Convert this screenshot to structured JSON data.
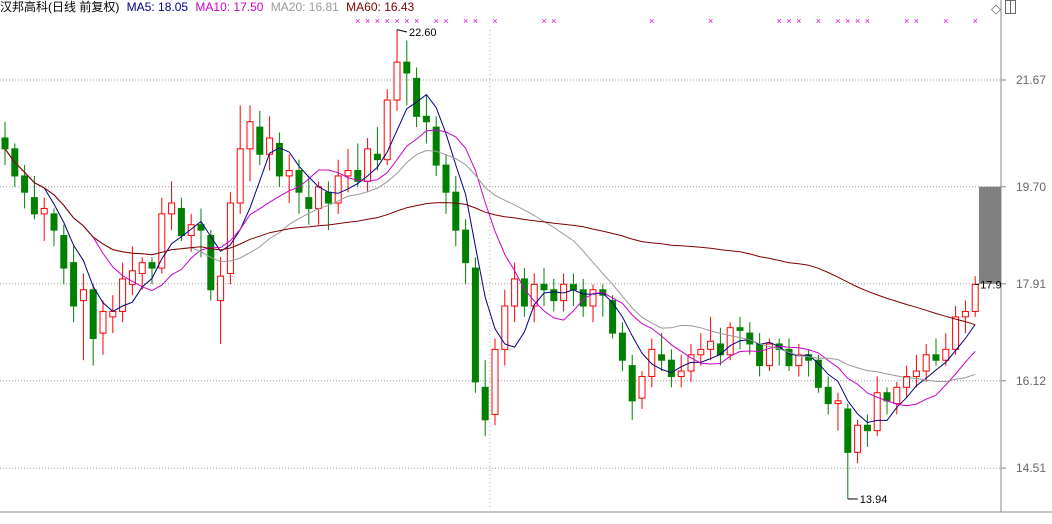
{
  "legend": {
    "title": "汉邦高科(日线 前复权)",
    "ma5": "MA5: 18.05",
    "ma10": "MA10: 17.50",
    "ma20": "MA20: 16.81",
    "ma60": "MA60: 16.43"
  },
  "colors": {
    "up": "#ff0000",
    "down": "#008000",
    "ma5": "#000080",
    "ma10": "#cc00cc",
    "ma20": "#999999",
    "ma60": "#800000",
    "signal": "#dd00dd",
    "grid": "#999999"
  },
  "icons": [
    "diamond-icon",
    "panel-toggle-icon"
  ],
  "chart_data": {
    "type": "candlestick",
    "y_ticks": [
      21.67,
      19.7,
      17.91,
      16.12,
      14.51
    ],
    "y_tick_labels": [
      "21.67",
      "19.70",
      "17.91",
      "16.12",
      "14.51"
    ],
    "annotations": [
      {
        "label": "22.60",
        "value": 22.6,
        "candle": 40
      },
      {
        "label": "13.94",
        "value": 13.94,
        "candle": 86
      },
      {
        "label": "17.9",
        "value": 17.9,
        "candle": 99
      }
    ],
    "ma_periods": [
      5,
      10,
      20,
      60
    ],
    "signal_candles": [
      36,
      37,
      38,
      39,
      40,
      41,
      42,
      44,
      45,
      47,
      48,
      50,
      55,
      56,
      66,
      72,
      79,
      80,
      81,
      83,
      85,
      86,
      87,
      88,
      92,
      93,
      96,
      99
    ],
    "ohlc": [
      [
        20.6,
        20.9,
        20.1,
        20.4
      ],
      [
        20.4,
        20.5,
        19.7,
        19.9
      ],
      [
        19.9,
        20.1,
        19.3,
        19.6
      ],
      [
        19.5,
        19.9,
        19.1,
        19.2
      ],
      [
        19.2,
        19.5,
        18.7,
        19.3
      ],
      [
        19.2,
        19.3,
        18.6,
        18.9
      ],
      [
        18.8,
        19.0,
        17.9,
        18.2
      ],
      [
        18.3,
        18.6,
        17.2,
        17.5
      ],
      [
        17.6,
        18.1,
        16.5,
        17.8
      ],
      [
        17.8,
        17.9,
        16.4,
        16.9
      ],
      [
        17.0,
        17.6,
        16.6,
        17.4
      ],
      [
        17.3,
        17.7,
        17.0,
        17.4
      ],
      [
        17.4,
        18.3,
        17.2,
        18.0
      ],
      [
        17.9,
        18.6,
        17.7,
        18.15
      ],
      [
        18.1,
        18.4,
        17.8,
        18.3
      ],
      [
        18.3,
        18.4,
        17.9,
        18.2
      ],
      [
        18.2,
        19.5,
        18.1,
        19.2
      ],
      [
        19.2,
        19.8,
        18.9,
        19.4
      ],
      [
        19.3,
        19.5,
        18.7,
        18.8
      ],
      [
        18.8,
        19.2,
        18.5,
        19.0
      ],
      [
        19.0,
        19.3,
        18.4,
        18.9
      ],
      [
        18.8,
        18.9,
        17.6,
        17.8
      ],
      [
        17.6,
        18.4,
        16.8,
        18.05
      ],
      [
        18.1,
        19.6,
        17.9,
        19.4
      ],
      [
        19.4,
        21.2,
        19.2,
        20.4
      ],
      [
        20.4,
        21.2,
        19.8,
        20.9
      ],
      [
        20.8,
        21.1,
        20.1,
        20.3
      ],
      [
        20.3,
        21.0,
        20.0,
        20.6
      ],
      [
        20.5,
        20.7,
        19.7,
        19.9
      ],
      [
        19.9,
        20.3,
        19.4,
        20.0
      ],
      [
        20.0,
        20.2,
        19.2,
        19.6
      ],
      [
        19.5,
        19.9,
        19.0,
        19.3
      ],
      [
        19.3,
        19.8,
        19.0,
        19.7
      ],
      [
        19.6,
        19.8,
        18.9,
        19.4
      ],
      [
        19.4,
        20.2,
        19.2,
        19.9
      ],
      [
        19.9,
        20.4,
        19.6,
        20.0
      ],
      [
        20.0,
        20.5,
        19.7,
        19.8
      ],
      [
        19.8,
        20.6,
        19.6,
        20.4
      ],
      [
        20.3,
        20.8,
        20.0,
        20.2
      ],
      [
        20.2,
        21.5,
        20.1,
        21.3
      ],
      [
        21.3,
        22.6,
        21.1,
        22.0
      ],
      [
        22.0,
        22.4,
        21.2,
        21.8
      ],
      [
        21.7,
        21.9,
        20.8,
        21.0
      ],
      [
        21.0,
        21.4,
        20.5,
        20.9
      ],
      [
        20.8,
        21.0,
        19.9,
        20.1
      ],
      [
        20.1,
        20.3,
        19.2,
        19.6
      ],
      [
        19.6,
        19.9,
        18.6,
        18.9
      ],
      [
        18.9,
        19.1,
        17.9,
        18.3
      ],
      [
        18.2,
        18.4,
        15.9,
        16.1
      ],
      [
        16.0,
        16.5,
        15.1,
        15.4
      ],
      [
        15.5,
        16.9,
        15.3,
        16.7
      ],
      [
        16.7,
        17.8,
        16.4,
        17.5
      ],
      [
        17.5,
        18.3,
        17.2,
        18.0
      ],
      [
        18.0,
        18.2,
        17.3,
        17.5
      ],
      [
        17.5,
        18.1,
        17.2,
        17.9
      ],
      [
        17.9,
        18.2,
        17.5,
        17.8
      ],
      [
        17.8,
        18.0,
        17.4,
        17.6
      ],
      [
        17.6,
        18.1,
        17.4,
        17.9
      ],
      [
        17.9,
        18.1,
        17.5,
        17.8
      ],
      [
        17.8,
        18.0,
        17.3,
        17.5
      ],
      [
        17.5,
        17.9,
        17.2,
        17.8
      ],
      [
        17.8,
        17.9,
        17.3,
        17.7
      ],
      [
        17.6,
        17.7,
        16.9,
        17.0
      ],
      [
        17.0,
        17.2,
        16.3,
        16.5
      ],
      [
        16.4,
        16.6,
        15.4,
        15.75
      ],
      [
        15.8,
        16.3,
        15.6,
        16.2
      ],
      [
        16.2,
        16.9,
        16.0,
        16.7
      ],
      [
        16.6,
        17.0,
        16.3,
        16.5
      ],
      [
        16.5,
        16.7,
        16.0,
        16.2
      ],
      [
        16.2,
        16.6,
        16.0,
        16.3
      ],
      [
        16.3,
        16.8,
        16.1,
        16.6
      ],
      [
        16.6,
        17.0,
        16.4,
        16.7
      ],
      [
        16.7,
        17.3,
        16.5,
        16.85
      ],
      [
        16.8,
        17.1,
        16.4,
        16.6
      ],
      [
        16.6,
        17.2,
        16.5,
        17.1
      ],
      [
        17.1,
        17.3,
        16.7,
        17.05
      ],
      [
        17.0,
        17.2,
        16.6,
        16.8
      ],
      [
        16.8,
        17.0,
        16.2,
        16.4
      ],
      [
        16.4,
        16.9,
        16.3,
        16.8
      ],
      [
        16.8,
        16.9,
        16.4,
        16.7
      ],
      [
        16.7,
        16.9,
        16.3,
        16.4
      ],
      [
        16.4,
        16.8,
        16.2,
        16.6
      ],
      [
        16.6,
        16.7,
        16.2,
        16.5
      ],
      [
        16.5,
        16.6,
        15.9,
        16.0
      ],
      [
        16.0,
        16.2,
        15.5,
        15.7
      ],
      [
        15.7,
        15.9,
        15.2,
        15.75
      ],
      [
        15.6,
        15.7,
        13.94,
        14.8
      ],
      [
        14.8,
        15.4,
        14.6,
        15.3
      ],
      [
        15.3,
        15.5,
        14.9,
        15.2
      ],
      [
        15.2,
        16.2,
        15.1,
        15.9
      ],
      [
        15.9,
        16.0,
        15.5,
        15.75
      ],
      [
        15.7,
        16.1,
        15.5,
        16.0
      ],
      [
        16.0,
        16.4,
        15.8,
        16.2
      ],
      [
        16.2,
        16.6,
        16.0,
        16.3
      ],
      [
        16.3,
        16.8,
        16.1,
        16.6
      ],
      [
        16.6,
        16.9,
        16.4,
        16.5
      ],
      [
        16.5,
        17.0,
        16.4,
        16.7
      ],
      [
        16.7,
        17.5,
        16.6,
        17.3
      ],
      [
        17.3,
        17.6,
        17.0,
        17.4
      ],
      [
        17.4,
        18.05,
        17.3,
        17.9
      ]
    ]
  }
}
